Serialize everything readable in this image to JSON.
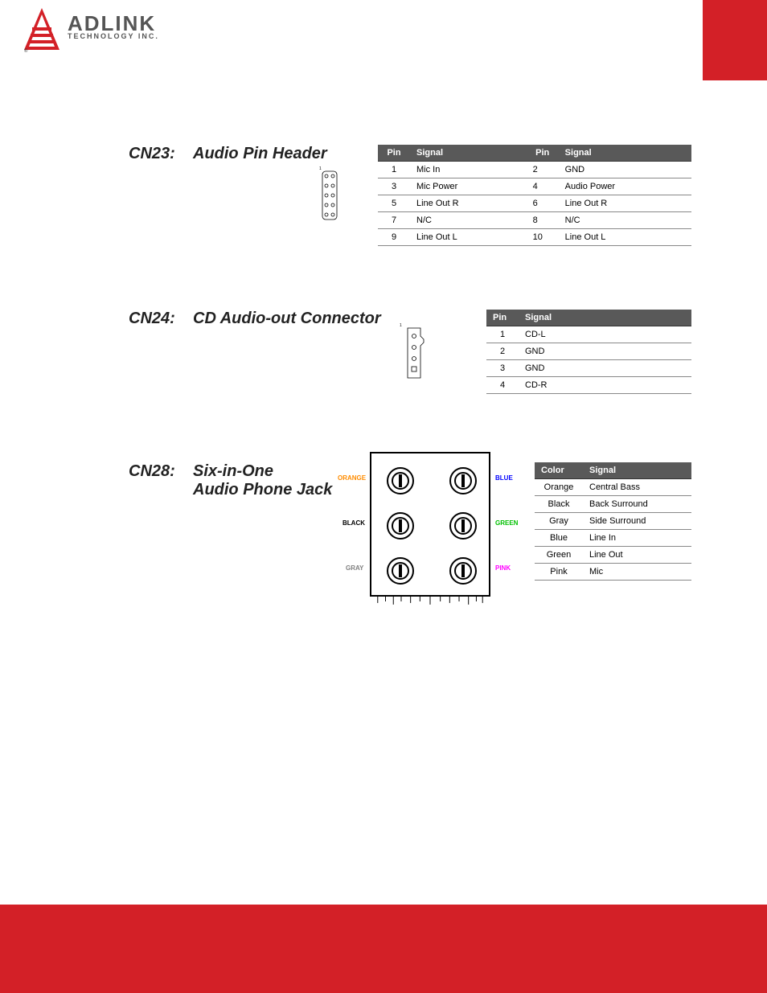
{
  "logo": {
    "main": "ADLINK",
    "sub": "TECHNOLOGY INC."
  },
  "cn23": {
    "cn": "CN23:",
    "title": "Audio Pin Header",
    "table": {
      "headers": [
        "Pin",
        "Signal",
        "Pin",
        "Signal"
      ],
      "rows": [
        [
          "1",
          "Mic In",
          "2",
          "GND"
        ],
        [
          "3",
          "Mic Power",
          "4",
          "Audio Power"
        ],
        [
          "5",
          "Line Out R",
          "6",
          "Line Out R"
        ],
        [
          "7",
          "N/C",
          "8",
          "N/C"
        ],
        [
          "9",
          "Line Out L",
          "10",
          "Line Out L"
        ]
      ]
    },
    "diagram": {
      "rows": 5,
      "cols": 2
    }
  },
  "cn24": {
    "cn": "CN24:",
    "title": "CD Audio-out Connector",
    "table": {
      "headers": [
        "Pin",
        "Signal"
      ],
      "rows": [
        [
          "1",
          "CD-L"
        ],
        [
          "2",
          "GND"
        ],
        [
          "3",
          "GND"
        ],
        [
          "4",
          "CD-R"
        ]
      ]
    }
  },
  "cn28": {
    "cn": "CN28:",
    "title_l1": "Six-in-One",
    "title_l2": "Audio Phone Jack",
    "table": {
      "headers": [
        "Color",
        "Signal"
      ],
      "rows": [
        [
          "Orange",
          "Central Bass"
        ],
        [
          "Black",
          "Back Surround"
        ],
        [
          "Gray",
          "Side Surround"
        ],
        [
          "Blue",
          "Line In"
        ],
        [
          "Green",
          "Line Out"
        ],
        [
          "Pink",
          "Mic"
        ]
      ]
    },
    "jacks": {
      "orange": {
        "label": "ORANGE",
        "color": "#ff8c00"
      },
      "black": {
        "label": "BLACK",
        "color": "#000000"
      },
      "gray": {
        "label": "GRAY",
        "color": "#808080"
      },
      "blue": {
        "label": "BLUE",
        "color": "#0000ff"
      },
      "green": {
        "label": "GREEN",
        "color": "#00c000"
      },
      "pink": {
        "label": "PINK",
        "color": "#ff00ff"
      }
    }
  },
  "colors": {
    "brand_red": "#d32027",
    "table_header_bg": "#595959",
    "table_header_fg": "#ffffff"
  }
}
